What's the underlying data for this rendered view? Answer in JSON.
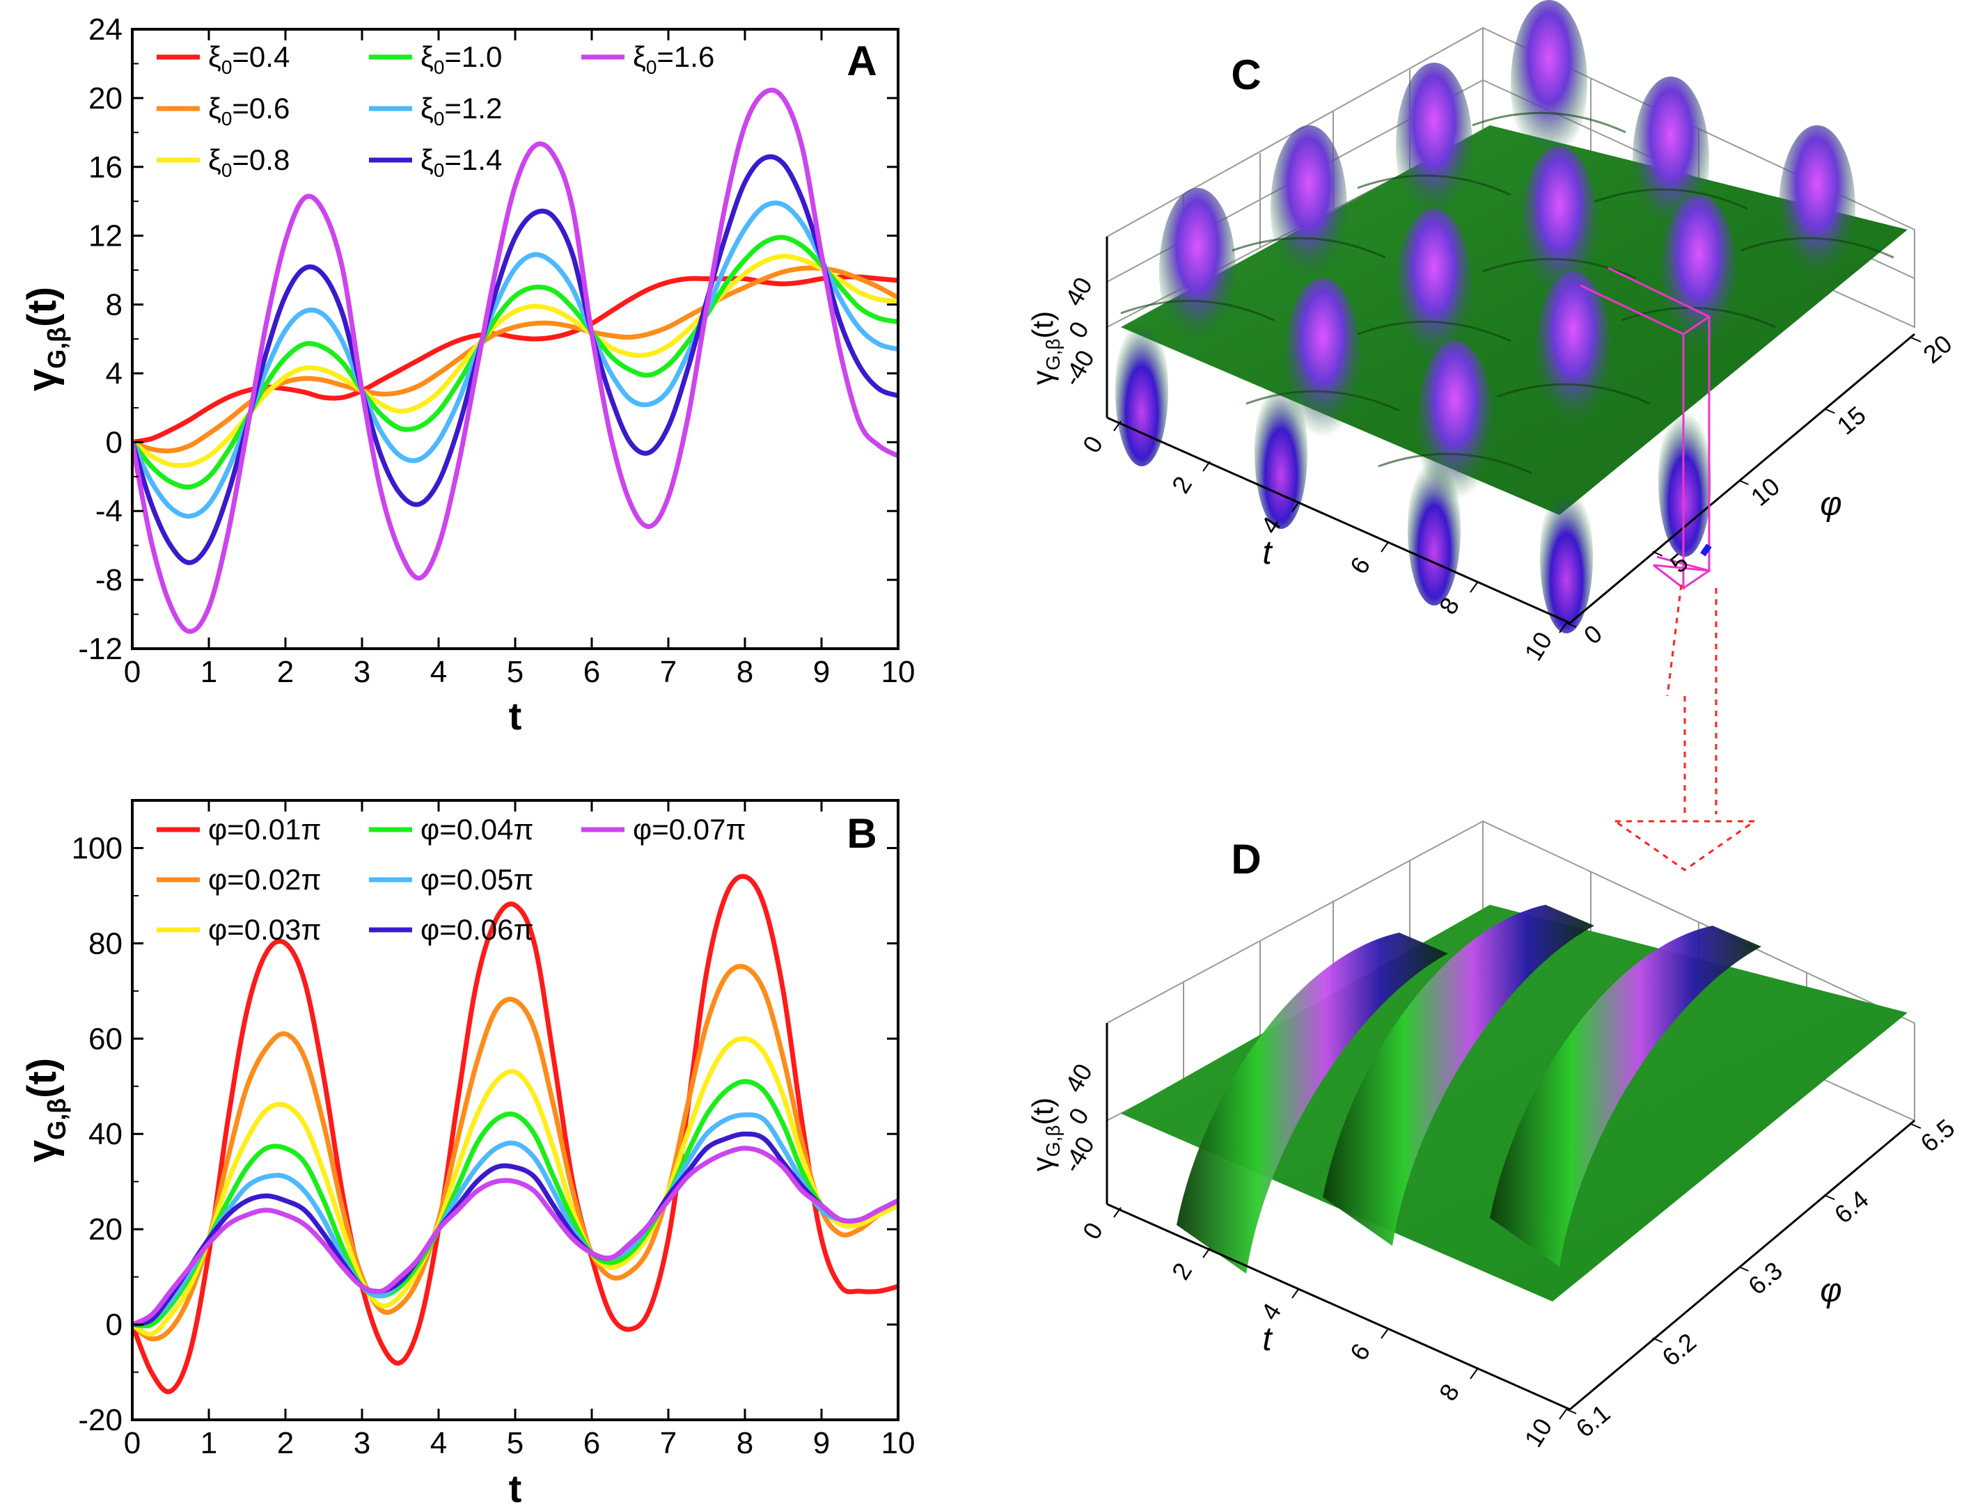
{
  "chart_data": [
    {
      "panel": "A",
      "type": "line",
      "xlabel": "t",
      "ylabel": "γG,β(t)",
      "xlim": [
        0,
        10
      ],
      "ylim": [
        -12,
        24
      ],
      "xticks": [
        "0",
        "1",
        "2",
        "3",
        "4",
        "5",
        "6",
        "7",
        "8",
        "9",
        "10"
      ],
      "yticks": [
        "-12",
        "-8",
        "-4",
        "0",
        "4",
        "8",
        "12",
        "16",
        "20",
        "24"
      ],
      "legend_location": "top-left",
      "legend_symbol": "ξ",
      "legend_subscript": "0",
      "x": [
        0,
        0.25,
        0.5,
        0.75,
        1,
        1.25,
        1.5,
        1.75,
        2,
        2.25,
        2.5,
        2.75,
        3,
        3.25,
        3.5,
        3.75,
        4,
        4.25,
        4.5,
        4.75,
        5,
        5.25,
        5.5,
        5.75,
        6,
        6.25,
        6.5,
        6.75,
        7,
        7.25,
        7.5,
        7.75,
        8,
        8.25,
        8.5,
        8.75,
        9,
        9.25,
        9.5,
        9.75,
        10
      ],
      "series": [
        {
          "name": "=0.4",
          "color": "#ff1a1a",
          "values": [
            0,
            0.2,
            0.7,
            1.3,
            2.0,
            2.6,
            3.0,
            3.2,
            3.1,
            2.9,
            2.6,
            2.6,
            3.0,
            3.6,
            4.2,
            4.8,
            5.4,
            5.9,
            6.2,
            6.3,
            6.1,
            6.0,
            6.1,
            6.4,
            6.9,
            7.6,
            8.3,
            8.9,
            9.3,
            9.5,
            9.5,
            9.5,
            9.5,
            9.3,
            9.2,
            9.3,
            9.5,
            9.6,
            9.6,
            9.5,
            9.4
          ]
        },
        {
          "name": "=0.6",
          "color": "#ff8c1a",
          "values": [
            0,
            -0.4,
            -0.5,
            -0.2,
            0.5,
            1.3,
            2.2,
            3.0,
            3.5,
            3.7,
            3.6,
            3.3,
            3.0,
            2.8,
            2.9,
            3.3,
            4.0,
            4.8,
            5.6,
            6.3,
            6.7,
            6.9,
            6.9,
            6.7,
            6.4,
            6.2,
            6.1,
            6.3,
            6.7,
            7.3,
            7.9,
            8.5,
            9.0,
            9.5,
            9.9,
            10.1,
            10.1,
            9.9,
            9.5,
            9.0,
            8.4
          ]
        },
        {
          "name": "=0.8",
          "color": "#ffee1a",
          "values": [
            0,
            -0.8,
            -1.3,
            -1.3,
            -0.8,
            0.2,
            1.5,
            2.8,
            3.8,
            4.3,
            4.2,
            3.7,
            3.0,
            2.2,
            1.8,
            2.1,
            2.9,
            4.2,
            5.6,
            6.8,
            7.6,
            7.9,
            7.7,
            7.1,
            6.3,
            5.5,
            5.1,
            5.1,
            5.6,
            6.5,
            7.6,
            8.8,
            9.8,
            10.5,
            10.8,
            10.6,
            10.1,
            9.4,
            8.7,
            8.3,
            8.2
          ]
        },
        {
          "name": "=1.0",
          "color": "#1aee1a",
          "values": [
            0,
            -1.4,
            -2.3,
            -2.6,
            -2.0,
            -0.5,
            1.4,
            3.4,
            4.9,
            5.7,
            5.5,
            4.6,
            3.0,
            1.6,
            0.8,
            0.9,
            1.8,
            3.4,
            5.3,
            7.2,
            8.5,
            9.0,
            8.8,
            7.8,
            6.4,
            5.0,
            4.2,
            3.9,
            4.5,
            5.8,
            7.4,
            9.2,
            10.6,
            11.6,
            11.9,
            11.4,
            10.3,
            9.0,
            7.8,
            7.2,
            7.0
          ]
        },
        {
          "name": "=1.2",
          "color": "#4db8ff",
          "values": [
            0,
            -2.3,
            -3.8,
            -4.3,
            -3.6,
            -1.6,
            1.2,
            4.2,
            6.5,
            7.6,
            7.4,
            5.8,
            3.0,
            0.6,
            -0.8,
            -1.0,
            0.1,
            2.3,
            5.2,
            8.0,
            10.1,
            10.9,
            10.4,
            8.9,
            6.3,
            4.0,
            2.5,
            2.2,
            3.0,
            5.1,
            7.6,
            10.3,
            12.4,
            13.7,
            13.8,
            12.7,
            10.6,
            8.3,
            6.6,
            5.7,
            5.4
          ]
        },
        {
          "name": "=1.4",
          "color": "#3a1acc",
          "values": [
            0,
            -3.6,
            -6.0,
            -7.0,
            -5.9,
            -3.0,
            1.0,
            5.2,
            8.5,
            10.1,
            9.7,
            7.4,
            3.0,
            -0.8,
            -3.0,
            -3.6,
            -2.3,
            0.7,
            4.8,
            8.8,
            11.9,
            13.3,
            13.1,
            10.9,
            6.3,
            2.6,
            0.0,
            -0.6,
            0.9,
            4.2,
            8.2,
            12.0,
            15.1,
            16.5,
            16.2,
            14.1,
            10.7,
            6.9,
            4.4,
            3.1,
            2.7
          ]
        },
        {
          "name": "=1.6",
          "color": "#cc44ee",
          "values": [
            0,
            -5.8,
            -9.5,
            -11.0,
            -9.6,
            -5.3,
            0.7,
            6.9,
            11.7,
            14.2,
            13.4,
            10.0,
            3.0,
            -2.9,
            -6.4,
            -7.9,
            -6.0,
            -1.5,
            4.3,
            10.1,
            14.9,
            17.2,
            16.7,
            13.6,
            6.3,
            0.3,
            -3.5,
            -4.9,
            -3.2,
            1.3,
            7.8,
            13.9,
            18.4,
            20.3,
            20.0,
            17.1,
            10.9,
            5.1,
            1.1,
            -0.2,
            -0.8
          ]
        }
      ]
    },
    {
      "panel": "B",
      "type": "line",
      "xlabel": "t",
      "ylabel": "γG,β(t)",
      "xlim": [
        0,
        10
      ],
      "ylim": [
        -20,
        110
      ],
      "xticks": [
        "0",
        "1",
        "2",
        "3",
        "4",
        "5",
        "6",
        "7",
        "8",
        "9",
        "10"
      ],
      "yticks": [
        "-20",
        "0",
        "20",
        "40",
        "60",
        "80",
        "100"
      ],
      "legend_location": "top-left",
      "x": [
        0,
        0.25,
        0.5,
        0.75,
        1,
        1.25,
        1.5,
        1.75,
        2,
        2.25,
        2.5,
        2.75,
        3,
        3.25,
        3.5,
        3.75,
        4,
        4.25,
        4.5,
        4.75,
        5,
        5.25,
        5.5,
        5.75,
        6,
        6.25,
        6.5,
        6.75,
        7,
        7.25,
        7.5,
        7.75,
        8,
        8.25,
        8.5,
        8.75,
        9,
        9.25,
        9.5,
        9.75,
        10
      ],
      "series": [
        {
          "name": "φ=0.01π",
          "color": "#ff1a1a",
          "values": [
            0,
            -10,
            -14,
            -6,
            15,
            43,
            66,
            78,
            80,
            72,
            52,
            27,
            8,
            -4,
            -8,
            0,
            20,
            47,
            72,
            85,
            88,
            80,
            56,
            30,
            14,
            2,
            -1,
            3,
            18,
            45,
            74,
            90,
            94,
            88,
            70,
            42,
            18,
            8,
            7,
            7,
            8
          ]
        },
        {
          "name": "φ=0.02π",
          "color": "#ff8c1a",
          "values": [
            0,
            -3,
            -1,
            6,
            18,
            35,
            50,
            58,
            61,
            56,
            42,
            24,
            10,
            3,
            4,
            10,
            22,
            39,
            55,
            66,
            68,
            62,
            46,
            28,
            15,
            10,
            11,
            16,
            28,
            46,
            63,
            73,
            75,
            70,
            56,
            38,
            24,
            19,
            20,
            23,
            25
          ]
        },
        {
          "name": "φ=0.03π",
          "color": "#ffee1a",
          "values": [
            0,
            -2,
            2,
            8,
            18,
            30,
            39,
            45,
            46,
            42,
            32,
            20,
            9,
            4,
            6,
            12,
            21,
            33,
            44,
            51,
            53,
            48,
            37,
            24,
            15,
            12,
            14,
            19,
            28,
            40,
            51,
            58,
            60,
            57,
            48,
            35,
            25,
            21,
            21,
            23,
            25
          ]
        },
        {
          "name": "φ=0.04π",
          "color": "#1aee1a",
          "values": [
            0,
            0,
            4,
            10,
            18,
            26,
            33,
            37,
            37,
            34,
            26,
            16,
            8,
            6,
            8,
            13,
            20,
            29,
            38,
            43,
            44,
            40,
            31,
            22,
            15,
            13,
            15,
            20,
            27,
            36,
            44,
            49,
            51,
            49,
            42,
            32,
            25,
            22,
            22,
            24,
            26
          ]
        },
        {
          "name": "φ=0.05π",
          "color": "#4db8ff",
          "values": [
            0,
            1,
            5,
            11,
            18,
            24,
            29,
            31,
            31,
            28,
            22,
            14,
            8,
            6,
            9,
            14,
            20,
            27,
            33,
            37,
            38,
            35,
            28,
            20,
            15,
            14,
            16,
            21,
            27,
            34,
            40,
            43,
            44,
            43,
            37,
            30,
            24,
            22,
            22,
            24,
            26
          ]
        },
        {
          "name": "φ=0.06π",
          "color": "#3a1acc",
          "values": [
            0,
            1,
            6,
            12,
            18,
            23,
            26,
            27,
            26,
            24,
            19,
            13,
            8,
            7,
            9,
            14,
            20,
            25,
            30,
            33,
            33,
            31,
            25,
            19,
            15,
            14,
            17,
            21,
            27,
            32,
            37,
            39,
            40,
            39,
            34,
            29,
            25,
            22,
            22,
            24,
            26
          ]
        },
        {
          "name": "φ=0.07π",
          "color": "#cc44ee",
          "values": [
            0,
            2,
            7,
            12,
            17,
            21,
            23,
            24,
            23,
            21,
            17,
            12,
            8,
            7,
            10,
            14,
            20,
            24,
            28,
            30,
            30,
            28,
            23,
            18,
            15,
            14,
            17,
            21,
            26,
            31,
            34,
            36,
            37,
            36,
            33,
            28,
            25,
            22,
            22,
            24,
            26
          ]
        }
      ]
    },
    {
      "panel": "C",
      "type": "surface",
      "zlabel": "γG,β(t)",
      "tlabel": "t",
      "philabel": "φ",
      "zticks": [
        "40",
        "0",
        "-40"
      ],
      "tticks": [
        "0",
        "2",
        "4",
        "6",
        "8",
        "10"
      ],
      "phiticks": [
        "0",
        "5",
        "10",
        "15",
        "20"
      ],
      "t_range": [
        0,
        10
      ],
      "phi_range": [
        0,
        20
      ]
    },
    {
      "panel": "D",
      "type": "surface",
      "zlabel": "γG,β(t)",
      "tlabel": "t",
      "philabel": "φ",
      "zticks": [
        "40",
        "0",
        "-40"
      ],
      "tticks": [
        "0",
        "2",
        "4",
        "6",
        "8",
        "10"
      ],
      "phiticks": [
        "6.1",
        "6.2",
        "6.3",
        "6.4",
        "6.5"
      ],
      "t_range": [
        0,
        10
      ],
      "phi_range": [
        6.1,
        6.5
      ]
    }
  ],
  "colors": {
    "surface_flat": "#1f9e1f",
    "surface_bright": "#33dd33",
    "surface_peak": "#cc44ee",
    "surface_valley": "#3a1acc",
    "surface_dark": "#0b2a0b",
    "zoom_box": "#ee33cc",
    "zoom_arrow": "#ff2222",
    "marker": "#1a1aee"
  }
}
